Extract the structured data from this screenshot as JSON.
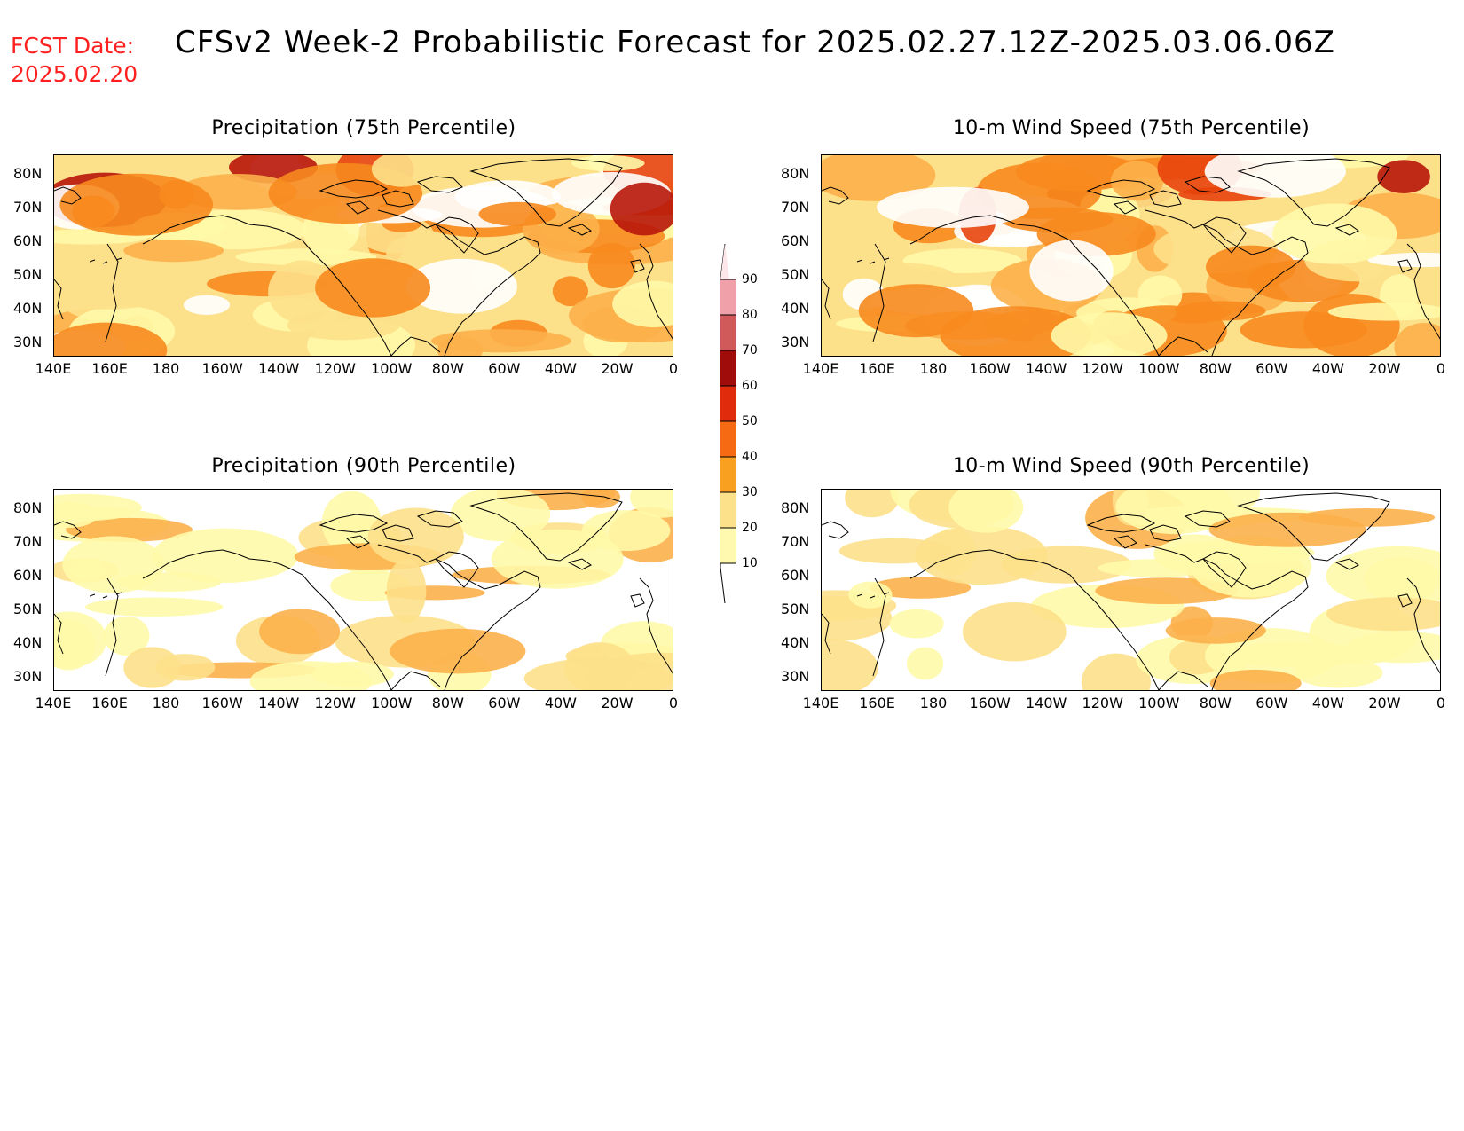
{
  "header": {
    "fcst_label": "FCST Date:",
    "fcst_date": "2025.02.20",
    "title": "CFSv2 Week-2 Probabilistic Forecast for 2025.02.27.12Z-2025.03.06.06Z"
  },
  "axes": {
    "lat_labels": [
      "80N",
      "70N",
      "60N",
      "50N",
      "40N",
      "30N"
    ],
    "lon_labels": [
      "140E",
      "160E",
      "180",
      "160W",
      "140W",
      "120W",
      "100W",
      "80W",
      "60W",
      "40W",
      "20W",
      "0"
    ]
  },
  "colors": {
    "level_10": "#fff9a8",
    "level_20": "#fde08a",
    "level_30": "#fcb04a",
    "level_40": "#f78a1e",
    "level_50": "#e8440c",
    "level_60": "#b8160a",
    "level_70": "#d05a5a",
    "level_80": "#f0a0a8",
    "level_90": "#fad6dc",
    "coastline": "#000000"
  },
  "panels": [
    {
      "title": "Precipitation (75th Percentile)",
      "intensity": "high"
    },
    {
      "title": "10-m Wind Speed (75th Percentile)",
      "intensity": "high"
    },
    {
      "title": "Precipitation (90th Percentile)",
      "intensity": "low"
    },
    {
      "title": "10-m Wind Speed (90th Percentile)",
      "intensity": "low"
    }
  ],
  "colorbar": {
    "labels": [
      "90",
      "80",
      "70",
      "60",
      "50",
      "40",
      "30",
      "20",
      "10"
    ]
  }
}
